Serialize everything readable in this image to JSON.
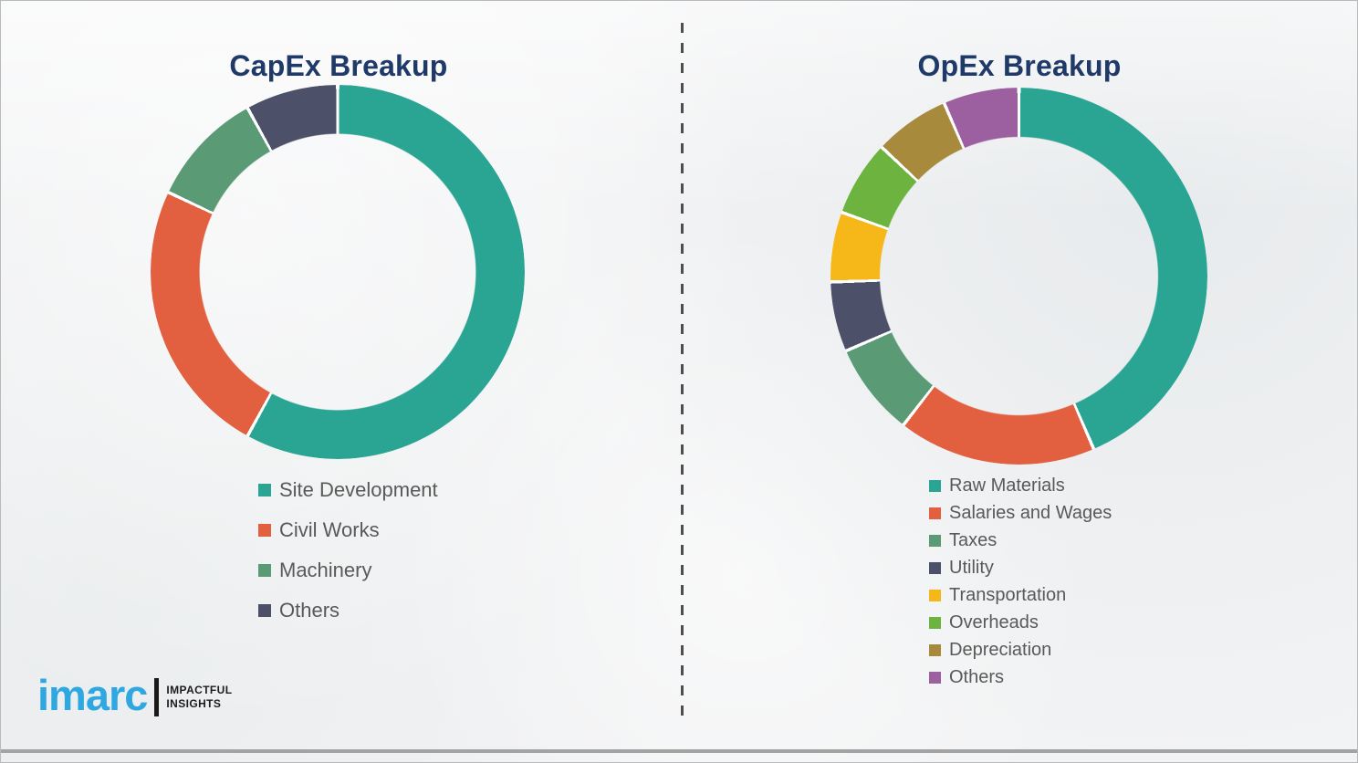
{
  "theme": {
    "title_color": "#1f3a68",
    "legend_text_color": "#595959",
    "background": "#f2f3f4",
    "divider_color": "#4e4e4e",
    "bottom_rule_color": "#a2a3a5"
  },
  "chart_data": [
    {
      "type": "pie",
      "subtype": "donut",
      "title": "CapEx Breakup",
      "labels": [
        "Site Development",
        "Civil Works",
        "Machinery",
        "Others"
      ],
      "values": [
        58,
        24,
        10,
        8
      ],
      "colors": [
        "#2aa493",
        "#e2603f",
        "#5a9b76",
        "#4d5069"
      ],
      "start_angle_deg": 0,
      "direction": "clockwise",
      "legend_position": "below-left",
      "data_labels_shown": false
    },
    {
      "type": "pie",
      "subtype": "donut",
      "title": "OpEx Breakup",
      "labels": [
        "Raw Materials",
        "Salaries and Wages",
        "Taxes",
        "Utility",
        "Transportation",
        "Overheads",
        "Depreciation",
        "Others"
      ],
      "values": [
        43.5,
        17,
        8,
        6,
        6,
        6.5,
        6.5,
        6.5
      ],
      "colors": [
        "#2aa493",
        "#e2603f",
        "#5a9b76",
        "#4d5069",
        "#f6b719",
        "#6cb33f",
        "#a78a3c",
        "#9c5fa0"
      ],
      "start_angle_deg": 0,
      "direction": "clockwise",
      "legend_position": "below-left",
      "data_labels_shown": false
    }
  ],
  "logo": {
    "brand": "imarc",
    "tagline_line1": "IMPACTFUL",
    "tagline_line2": "INSIGHTS",
    "brand_color": "#2fa8e1"
  }
}
